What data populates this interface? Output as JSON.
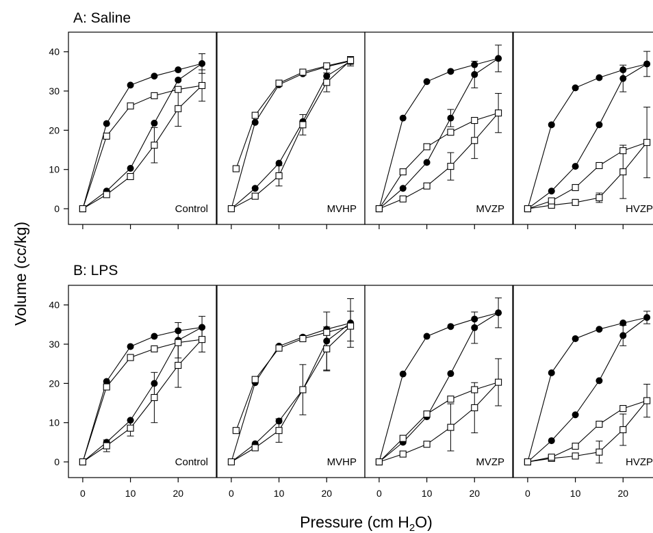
{
  "figure": {
    "ylabel": "Volume (cc/kg)",
    "xlabel_main": "Pressure (cm H",
    "xlabel_sub": "2",
    "xlabel_end": "O)"
  },
  "chart_data": [
    {
      "type": "line",
      "title": "A: Saline",
      "panels": [
        {
          "label": "Control",
          "x_ticks": [
            0,
            10,
            20
          ],
          "y_ticks": [
            0,
            10,
            20,
            30,
            40
          ],
          "xlim": [
            -3,
            28
          ],
          "ylim": [
            -4,
            45
          ],
          "series": [
            {
              "marker": "filled-circle",
              "x": [
                0,
                5,
                10,
                15,
                20,
                25
              ],
              "y": [
                0,
                4.5,
                10.3,
                21.8,
                32.8,
                37
              ],
              "x_deflation": [
                25,
                20,
                15,
                10,
                5,
                0
              ],
              "y_deflation": [
                37,
                35.4,
                33.8,
                31.5,
                21.7,
                0
              ],
              "err": [
                0,
                0,
                0,
                0,
                0,
                2.5
              ]
            },
            {
              "marker": "open-square",
              "x": [
                0,
                5,
                10,
                15,
                20,
                25
              ],
              "y": [
                0,
                3.6,
                8.2,
                16.2,
                25.5,
                31.4
              ],
              "x_deflation": [
                25,
                20,
                15,
                10,
                5,
                0
              ],
              "y_deflation": [
                31.4,
                30.4,
                28.8,
                26.2,
                18.5,
                0
              ],
              "err": [
                0,
                0,
                0,
                4.5,
                4.5,
                4
              ]
            }
          ]
        },
        {
          "label": "MVHP",
          "x_ticks": [
            0,
            10,
            20
          ],
          "y_ticks": [
            0,
            10,
            20,
            30,
            40
          ],
          "xlim": [
            -3,
            28
          ],
          "ylim": [
            -4,
            45
          ],
          "series": [
            {
              "marker": "filled-circle",
              "x": [
                0,
                5,
                10,
                15,
                20,
                25
              ],
              "y": [
                0,
                5.2,
                11.6,
                22.2,
                33.8,
                37.6
              ],
              "x_deflation": [
                25,
                20,
                15,
                10,
                5,
                0
              ],
              "y_deflation": [
                37.6,
                36.2,
                34.4,
                31.6,
                22,
                0
              ],
              "err": [
                0,
                0,
                0,
                0,
                2.4,
                1.2
              ]
            },
            {
              "marker": "open-square",
              "x": [
                0,
                5,
                10,
                15,
                20,
                25
              ],
              "y": [
                0,
                3.2,
                8.4,
                21.4,
                32.2,
                37.8
              ],
              "x_deflation": [
                25,
                20,
                15,
                10,
                5,
                1
              ],
              "y_deflation": [
                37.8,
                36.4,
                34.8,
                32,
                23.8,
                10.2
              ],
              "err": [
                0,
                0,
                2.6,
                2.6,
                2.4,
                1
              ]
            }
          ]
        },
        {
          "label": "MVZP",
          "x_ticks": [
            0,
            10,
            20
          ],
          "y_ticks": [
            0,
            10,
            20,
            30,
            40
          ],
          "xlim": [
            -3,
            28
          ],
          "ylim": [
            -4,
            45
          ],
          "series": [
            {
              "marker": "filled-circle",
              "x": [
                0,
                5,
                10,
                15,
                20,
                25
              ],
              "y": [
                0,
                5.2,
                11.8,
                23.1,
                34.2,
                38.3
              ],
              "x_deflation": [
                25,
                20,
                15,
                10,
                5,
                0
              ],
              "y_deflation": [
                38.3,
                36.7,
                35,
                32.4,
                23.1,
                0
              ],
              "err": [
                0,
                0,
                0,
                2.2,
                3.4,
                3.4
              ]
            },
            {
              "marker": "open-square",
              "x": [
                0,
                5,
                10,
                15,
                20,
                25
              ],
              "y": [
                0,
                2.5,
                5.8,
                10.8,
                17.4,
                24.4
              ],
              "x_deflation": [
                25,
                20,
                15,
                10,
                5,
                0
              ],
              "y_deflation": [
                24.4,
                22.5,
                19.5,
                15.8,
                9.4,
                0
              ],
              "err": [
                0,
                0,
                0,
                3.5,
                4.6,
                5
              ]
            }
          ]
        },
        {
          "label": "HVZP",
          "x_ticks": [
            0,
            10,
            20
          ],
          "y_ticks": [
            0,
            10,
            20,
            30,
            40
          ],
          "xlim": [
            -3,
            28
          ],
          "ylim": [
            -4,
            45
          ],
          "series": [
            {
              "marker": "filled-circle",
              "x": [
                0,
                5,
                10,
                15,
                20,
                25
              ],
              "y": [
                0,
                4.5,
                10.8,
                21.4,
                33.2,
                36.9
              ],
              "x_deflation": [
                25,
                20,
                15,
                10,
                5,
                0
              ],
              "y_deflation": [
                36.9,
                35.4,
                33.4,
                30.8,
                21.4,
                0
              ],
              "err": [
                0,
                0,
                0,
                0,
                3.4,
                3.2
              ]
            },
            {
              "marker": "open-square",
              "x": [
                0,
                5,
                10,
                15,
                20,
                25
              ],
              "y": [
                0,
                0.9,
                1.6,
                2.8,
                9.4,
                16.9
              ],
              "x_deflation": [
                25,
                20,
                15,
                10,
                5,
                0
              ],
              "y_deflation": [
                16.9,
                14.8,
                11,
                5.4,
                2,
                0
              ],
              "err": [
                0,
                0,
                0,
                1.2,
                6.8,
                9
              ]
            }
          ]
        }
      ]
    },
    {
      "type": "line",
      "title": "B: LPS",
      "panels": [
        {
          "label": "Control",
          "x_ticks": [
            0,
            10,
            20
          ],
          "y_ticks": [
            0,
            10,
            20,
            30,
            40
          ],
          "xlim": [
            -3,
            28
          ],
          "ylim": [
            -4,
            45
          ],
          "series": [
            {
              "marker": "filled-circle",
              "x": [
                0,
                5,
                10,
                15,
                20,
                25
              ],
              "y": [
                0,
                5,
                10.6,
                20,
                31,
                34.3
              ],
              "x_deflation": [
                25,
                20,
                15,
                10,
                5,
                0
              ],
              "y_deflation": [
                34.3,
                33.4,
                32,
                29.4,
                20.5,
                0
              ],
              "err": [
                0,
                0,
                0,
                0,
                4.5,
                2.8
              ]
            },
            {
              "marker": "open-square",
              "x": [
                0,
                5,
                10,
                15,
                20,
                25
              ],
              "y": [
                0,
                4.1,
                8.6,
                16.4,
                24.6,
                31.2
              ],
              "x_deflation": [
                25,
                20,
                15,
                10,
                5,
                0
              ],
              "y_deflation": [
                31.2,
                30.4,
                28.8,
                26.6,
                19.1,
                0
              ],
              "err": [
                0,
                1.5,
                2,
                6.4,
                5.6,
                3.2
              ]
            }
          ]
        },
        {
          "label": "MVHP",
          "x_ticks": [
            0,
            10,
            20
          ],
          "y_ticks": [
            0,
            10,
            20,
            30,
            40
          ],
          "xlim": [
            -3,
            28
          ],
          "ylim": [
            -4,
            45
          ],
          "series": [
            {
              "marker": "filled-circle",
              "x": [
                0,
                5,
                10,
                15,
                20,
                25
              ],
              "y": [
                0,
                4.6,
                10.4,
                18.4,
                30.8,
                35.4
              ],
              "x_deflation": [
                25,
                20,
                15,
                10,
                5,
                0
              ],
              "y_deflation": [
                35.4,
                33.8,
                31.8,
                29.5,
                20.2,
                0
              ],
              "err": [
                0,
                0,
                0,
                0,
                7.4,
                6.2
              ]
            },
            {
              "marker": "open-square",
              "x": [
                0,
                5,
                10,
                15,
                20,
                25
              ],
              "y": [
                0,
                3.6,
                8,
                18.4,
                28.8,
                34.6
              ],
              "x_deflation": [
                25,
                20,
                15,
                10,
                5,
                1
              ],
              "y_deflation": [
                34.6,
                33,
                31.4,
                29,
                21,
                8
              ],
              "err": [
                0,
                0,
                3,
                6.4,
                5.6,
                3.8
              ]
            }
          ]
        },
        {
          "label": "MVZP",
          "x_ticks": [
            0,
            10,
            20
          ],
          "y_ticks": [
            0,
            10,
            20,
            30,
            40
          ],
          "xlim": [
            -3,
            28
          ],
          "ylim": [
            -4,
            45
          ],
          "series": [
            {
              "marker": "filled-circle",
              "x": [
                0,
                5,
                10,
                15,
                20,
                25
              ],
              "y": [
                0,
                5,
                11.5,
                22.5,
                34.2,
                38
              ],
              "x_deflation": [
                25,
                20,
                15,
                10,
                5,
                0
              ],
              "y_deflation": [
                38,
                36.4,
                34.5,
                32,
                22.4,
                0
              ],
              "err": [
                0,
                0,
                0,
                0,
                4,
                3.8
              ]
            },
            {
              "marker": "open-square",
              "x": [
                0,
                5,
                10,
                15,
                20,
                25
              ],
              "y": [
                0,
                2,
                4.5,
                8.8,
                13.8,
                20.3
              ],
              "x_deflation": [
                25,
                20,
                15,
                10,
                5,
                0
              ],
              "y_deflation": [
                20.3,
                18.4,
                16,
                12.2,
                6,
                0
              ],
              "err": [
                0,
                0,
                0,
                6,
                6.4,
                6
              ]
            }
          ]
        },
        {
          "label": "HVZP",
          "x_ticks": [
            0,
            10,
            20
          ],
          "y_ticks": [
            0,
            10,
            20,
            30,
            40
          ],
          "xlim": [
            -3,
            28
          ],
          "ylim": [
            -4,
            45
          ],
          "series": [
            {
              "marker": "filled-circle",
              "x": [
                0,
                5,
                10,
                15,
                20,
                25
              ],
              "y": [
                0,
                5.4,
                12,
                20.7,
                32.2,
                36.8
              ],
              "x_deflation": [
                25,
                20,
                15,
                10,
                5,
                0
              ],
              "y_deflation": [
                36.8,
                35.4,
                33.8,
                31.4,
                22.7,
                0
              ],
              "err": [
                0,
                0,
                0,
                0,
                2.6,
                1.6
              ]
            },
            {
              "marker": "open-square",
              "x": [
                0,
                5,
                10,
                15,
                20,
                25
              ],
              "y": [
                0,
                0.9,
                1.5,
                2.5,
                8.2,
                15.6
              ],
              "x_deflation": [
                25,
                20,
                15,
                10,
                5,
                0
              ],
              "y_deflation": [
                15.6,
                13.6,
                9.6,
                4,
                1.2,
                0
              ],
              "err": [
                0,
                0,
                0,
                2.8,
                4,
                4.2
              ]
            }
          ]
        }
      ]
    }
  ]
}
